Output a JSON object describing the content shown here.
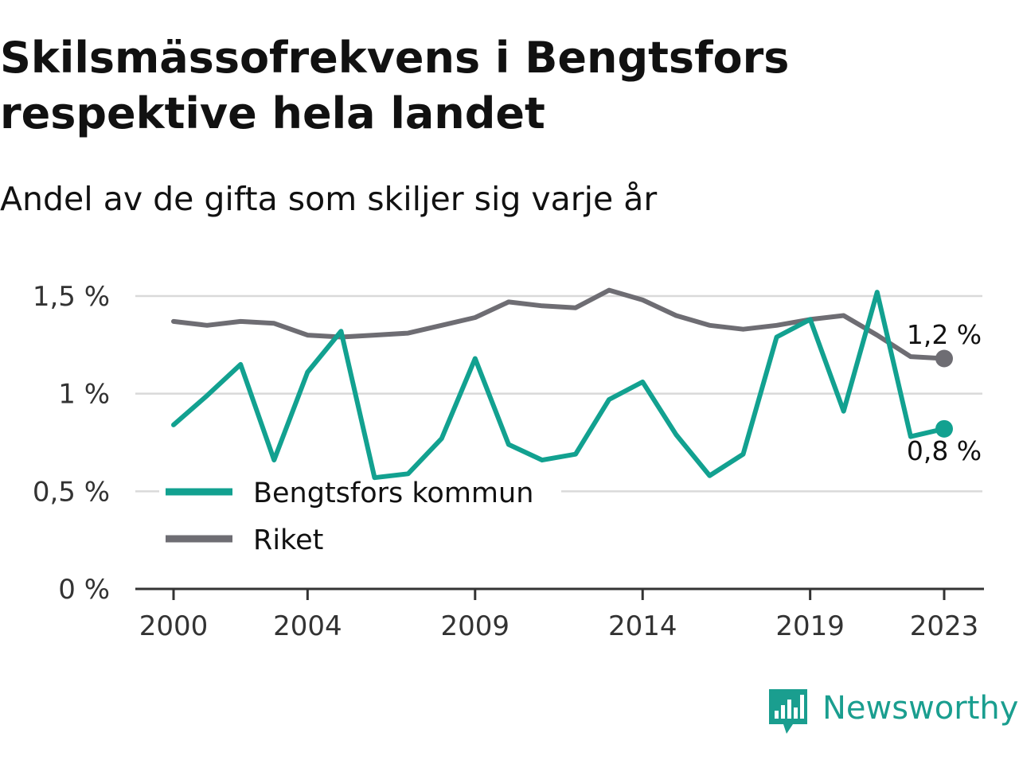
{
  "header": {
    "title": "Skilsmässofrekvens i Bengtsfors respektive hela landet",
    "subtitle": "Andel av de gifta som skiljer sig varje år"
  },
  "colors": {
    "bengtsfors": "#12a190",
    "riket": "#6e6d73",
    "grid": "#d9d9d9",
    "axis": "#333333"
  },
  "chart_data": {
    "type": "line",
    "title": "Skilsmässofrekvens i Bengtsfors respektive hela landet",
    "subtitle": "Andel av de gifta som skiljer sig varje år",
    "xlabel": "",
    "ylabel": "",
    "ylim": [
      0,
      1.5
    ],
    "y_ticks": [
      0,
      0.5,
      1,
      1.5
    ],
    "y_tick_labels": [
      "0 %",
      "0,5 %",
      "1 %",
      "1,5 %"
    ],
    "x_ticks": [
      2000,
      2004,
      2009,
      2014,
      2019,
      2023
    ],
    "x_tick_labels": [
      "2000",
      "2004",
      "2009",
      "2014",
      "2019",
      "2023"
    ],
    "x": [
      2000,
      2001,
      2002,
      2003,
      2004,
      2005,
      2006,
      2007,
      2008,
      2009,
      2010,
      2011,
      2012,
      2013,
      2014,
      2015,
      2016,
      2017,
      2018,
      2019,
      2020,
      2021,
      2022,
      2023
    ],
    "series": [
      {
        "name": "Bengtsfors kommun",
        "values": [
          0.84,
          0.99,
          1.15,
          0.66,
          1.11,
          1.32,
          0.57,
          0.59,
          0.77,
          1.18,
          0.74,
          0.66,
          0.69,
          0.97,
          1.06,
          0.79,
          0.58,
          0.69,
          1.29,
          1.38,
          0.91,
          1.52,
          0.78,
          0.82
        ],
        "end_label": "0,8 %"
      },
      {
        "name": "Riket",
        "values": [
          1.37,
          1.35,
          1.37,
          1.36,
          1.3,
          1.29,
          1.3,
          1.31,
          1.35,
          1.39,
          1.47,
          1.45,
          1.44,
          1.53,
          1.48,
          1.4,
          1.35,
          1.33,
          1.35,
          1.38,
          1.4,
          1.3,
          1.19,
          1.18
        ],
        "end_label": "1,2 %"
      }
    ],
    "legend_position": "bottom-left",
    "grid": true
  },
  "branding": {
    "logo_text": "Newsworthy",
    "logo_icon": "bar-chart-speech-bubble-icon"
  }
}
